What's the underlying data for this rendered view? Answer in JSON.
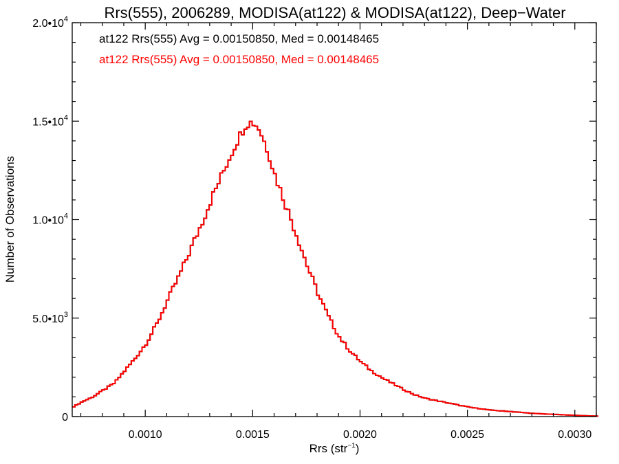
{
  "colors": {
    "series_1": "#000000",
    "series_2": "#ff0000",
    "axis": "#000000"
  },
  "chart_data": {
    "type": "line",
    "style": "step-histogram",
    "title": "Rrs(555), 2006289, MODISA(at122) & MODISA(at122), Deep−Water",
    "xlabel_base": "Rrs (str",
    "xlabel_sup": "−1",
    "xlabel_close": ")",
    "ylabel": "Number of Observations",
    "xlim": [
      0.00066,
      0.0031
    ],
    "ylim": [
      0,
      20000
    ],
    "grid": false,
    "x_ticks": [
      {
        "value": 0.001,
        "label": "0.0010"
      },
      {
        "value": 0.0015,
        "label": "0.0015"
      },
      {
        "value": 0.002,
        "label": "0.0020"
      },
      {
        "value": 0.0025,
        "label": "0.0025"
      },
      {
        "value": 0.003,
        "label": "0.0030"
      }
    ],
    "y_ticks": [
      {
        "value": 0,
        "label": "0",
        "sup": ""
      },
      {
        "value": 5000,
        "label": "5.0•10",
        "sup": "3"
      },
      {
        "value": 10000,
        "label": "1.0•10",
        "sup": "4"
      },
      {
        "value": 15000,
        "label": "1.5•10",
        "sup": "4"
      },
      {
        "value": 20000,
        "label": "2.0•10",
        "sup": "4"
      }
    ],
    "annotations": [
      "at122 Rrs(555) Avg = 0.00150850, Med = 0.00148465",
      "at122 Rrs(555) Avg = 0.00150850, Med = 0.00148465"
    ],
    "series": [
      {
        "color": "#000000",
        "x": [
          0.00066,
          0.0007,
          0.00075,
          0.0008,
          0.00085,
          0.0009,
          0.00095,
          0.001,
          0.00105,
          0.0011,
          0.00115,
          0.0012,
          0.00125,
          0.0013,
          0.00133,
          0.00136,
          0.00139,
          0.00142,
          0.00144,
          0.00146,
          0.00148,
          0.0015,
          0.00152,
          0.00154,
          0.00157,
          0.0016,
          0.00165,
          0.0017,
          0.00175,
          0.0018,
          0.00185,
          0.0019,
          0.00195,
          0.002,
          0.00205,
          0.0021,
          0.00215,
          0.0022,
          0.00225,
          0.0023,
          0.0024,
          0.0025,
          0.0026,
          0.0027,
          0.0028,
          0.0029,
          0.003,
          0.0031
        ],
        "y": [
          500,
          750,
          1000,
          1350,
          1700,
          2350,
          3000,
          3750,
          4750,
          5950,
          7100,
          8350,
          9650,
          11000,
          11750,
          12500,
          13250,
          13950,
          14400,
          14800,
          14950,
          14900,
          14700,
          14200,
          13300,
          12200,
          10700,
          9200,
          7600,
          6200,
          5000,
          4000,
          3300,
          2750,
          2300,
          1950,
          1650,
          1350,
          1100,
          920,
          700,
          480,
          330,
          250,
          160,
          110,
          60,
          20
        ]
      },
      {
        "color": "#ff0000",
        "x": [
          0.00066,
          0.0007,
          0.00075,
          0.0008,
          0.00085,
          0.0009,
          0.00095,
          0.001,
          0.00105,
          0.0011,
          0.00115,
          0.0012,
          0.00125,
          0.0013,
          0.00133,
          0.00136,
          0.00139,
          0.00142,
          0.00144,
          0.00146,
          0.00148,
          0.0015,
          0.00152,
          0.00154,
          0.00157,
          0.0016,
          0.00165,
          0.0017,
          0.00175,
          0.0018,
          0.00185,
          0.0019,
          0.00195,
          0.002,
          0.00205,
          0.0021,
          0.00215,
          0.0022,
          0.00225,
          0.0023,
          0.0024,
          0.0025,
          0.0026,
          0.0027,
          0.0028,
          0.0029,
          0.003,
          0.0031
        ],
        "y": [
          500,
          750,
          1000,
          1350,
          1700,
          2350,
          3000,
          3750,
          4750,
          5950,
          7100,
          8350,
          9650,
          11000,
          11750,
          12500,
          13250,
          13950,
          14400,
          14800,
          14950,
          14900,
          14700,
          14200,
          13300,
          12200,
          10700,
          9200,
          7600,
          6200,
          5000,
          4000,
          3300,
          2750,
          2300,
          1950,
          1650,
          1350,
          1100,
          920,
          700,
          480,
          330,
          250,
          160,
          110,
          60,
          20
        ]
      }
    ]
  }
}
